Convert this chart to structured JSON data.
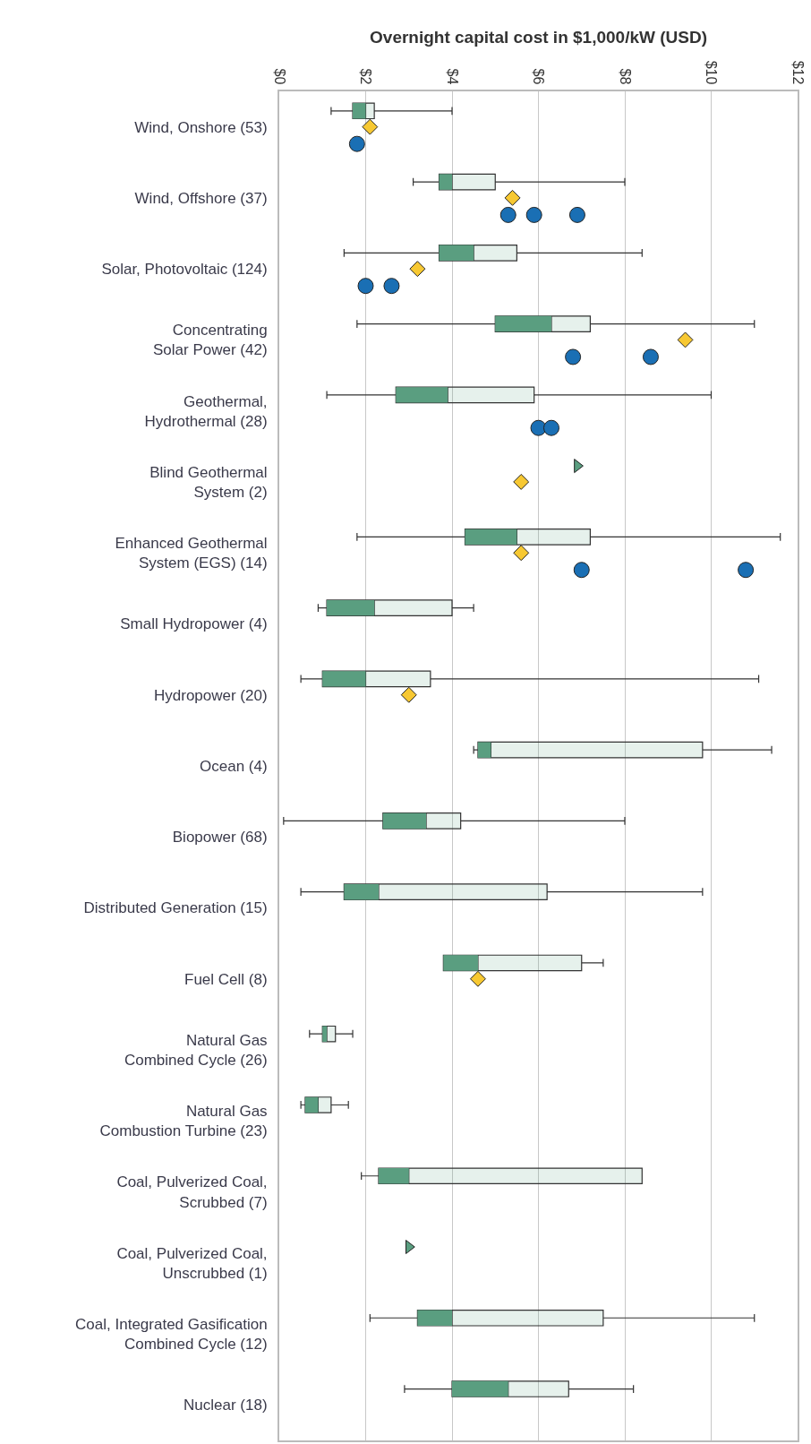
{
  "chart_data": {
    "type": "box",
    "orientation": "horizontal",
    "xlabel": "Overnight capital cost in $1,000/kW (USD)",
    "categories": [
      "Wind, Onshore (53)",
      "Wind, Offshore (37)",
      "Solar, Photovoltaic (124)",
      "Concentrating\nSolar Power (42)",
      "Geothermal,\nHydrothermal (28)",
      "Blind Geothermal\nSystem (2)",
      "Enhanced Geothermal\nSystem (EGS) (14)",
      "Small Hydropower (4)",
      "Hydropower (20)",
      "Ocean (4)",
      "Biopower (68)",
      "Distributed Generation (15)",
      "Fuel Cell (8)",
      "Natural Gas\nCombined Cycle (26)",
      "Natural Gas\nCombustion Turbine (23)",
      "Coal, Pulverized Coal,\nScrubbed (7)",
      "Coal, Pulverized Coal,\nUnscrubbed (1)",
      "Coal, Integrated Gasification\nCombined Cycle (12)",
      "Nuclear (18)"
    ],
    "series": [
      {
        "type": "box",
        "color": "#5a9e80",
        "boxes": [
          {
            "low": 1.2,
            "q1": 1.7,
            "median": 2.0,
            "q3": 2.2,
            "high": 4.0
          },
          {
            "low": 3.1,
            "q1": 3.7,
            "median": 4.0,
            "q3": 5.0,
            "high": 8.0
          },
          {
            "low": 1.5,
            "q1": 3.7,
            "median": 4.5,
            "q3": 5.5,
            "high": 8.4
          },
          {
            "low": 1.8,
            "q1": 5.0,
            "median": 6.3,
            "q3": 7.2,
            "high": 11.0
          },
          {
            "low": 1.1,
            "q1": 2.7,
            "median": 3.9,
            "q3": 5.9,
            "high": 10.0
          },
          null,
          {
            "low": 1.8,
            "q1": 4.3,
            "median": 5.5,
            "q3": 7.2,
            "high": 11.6
          },
          {
            "low": 0.9,
            "q1": 1.1,
            "median": 2.2,
            "q3": 4.0,
            "high": 4.5
          },
          {
            "low": 0.5,
            "q1": 1.0,
            "median": 2.0,
            "q3": 3.5,
            "high": 11.1
          },
          {
            "low": 4.5,
            "q1": 4.6,
            "median": 4.9,
            "q3": 9.8,
            "high": 11.4
          },
          {
            "low": 0.1,
            "q1": 2.4,
            "median": 3.4,
            "q3": 4.2,
            "high": 8.0
          },
          {
            "low": 0.5,
            "q1": 1.5,
            "median": 2.3,
            "q3": 6.2,
            "high": 9.8
          },
          {
            "low": 3.8,
            "q1": 3.8,
            "median": 4.6,
            "q3": 7.0,
            "high": 7.5
          },
          {
            "low": 0.7,
            "q1": 1.0,
            "median": 1.1,
            "q3": 1.3,
            "high": 1.7
          },
          {
            "low": 0.5,
            "q1": 0.6,
            "median": 0.9,
            "q3": 1.2,
            "high": 1.6
          },
          {
            "low": 1.9,
            "q1": 2.3,
            "median": 3.0,
            "q3": 8.4,
            "high": 8.4
          },
          null,
          {
            "low": 2.1,
            "q1": 3.2,
            "median": 4.0,
            "q3": 7.5,
            "high": 11.0
          },
          {
            "low": 2.9,
            "q1": 4.0,
            "median": 5.3,
            "q3": 6.7,
            "high": 8.2
          }
        ]
      },
      {
        "type": "scatter",
        "marker": "triangle",
        "color": "#5a9e80",
        "values": [
          null,
          null,
          null,
          null,
          null,
          6.9,
          null,
          null,
          null,
          null,
          null,
          null,
          null,
          null,
          null,
          null,
          3.0,
          null,
          null
        ]
      },
      {
        "type": "scatter",
        "marker": "diamond",
        "color": "#f7c832",
        "values": [
          2.1,
          5.4,
          3.2,
          9.4,
          null,
          5.6,
          5.6,
          null,
          3.0,
          null,
          null,
          null,
          4.6,
          null,
          null,
          null,
          null,
          null,
          null
        ]
      },
      {
        "type": "scatter",
        "marker": "circle",
        "color": "#1a6fb4",
        "values": [
          1.8,
          5.3,
          2.0,
          6.8,
          6.0,
          null,
          7.0,
          null,
          null,
          null,
          null,
          null,
          null,
          null,
          null,
          null,
          null,
          null,
          null
        ]
      },
      {
        "type": "scatter",
        "marker": "circle",
        "color": "#1a6fb4",
        "values": [
          null,
          5.9,
          2.6,
          8.6,
          6.3,
          null,
          10.8,
          null,
          null,
          null,
          null,
          null,
          null,
          null,
          null,
          null,
          null,
          null,
          null
        ]
      },
      {
        "type": "scatter",
        "marker": "circle",
        "color": "#1a6fb4",
        "values": [
          null,
          6.9,
          null,
          null,
          null,
          null,
          null,
          null,
          null,
          null,
          null,
          null,
          null,
          null,
          null,
          null,
          null,
          null,
          null
        ]
      }
    ],
    "xlim": [
      0,
      12
    ],
    "xticks": [
      {
        "value": 0,
        "label": "$0"
      },
      {
        "value": 2,
        "label": "$2"
      },
      {
        "value": 4,
        "label": "$4"
      },
      {
        "value": 6,
        "label": "$6"
      },
      {
        "value": 8,
        "label": "$8"
      },
      {
        "value": 10,
        "label": "$10"
      },
      {
        "value": 12,
        "label": "$12"
      }
    ],
    "grid": "x"
  }
}
